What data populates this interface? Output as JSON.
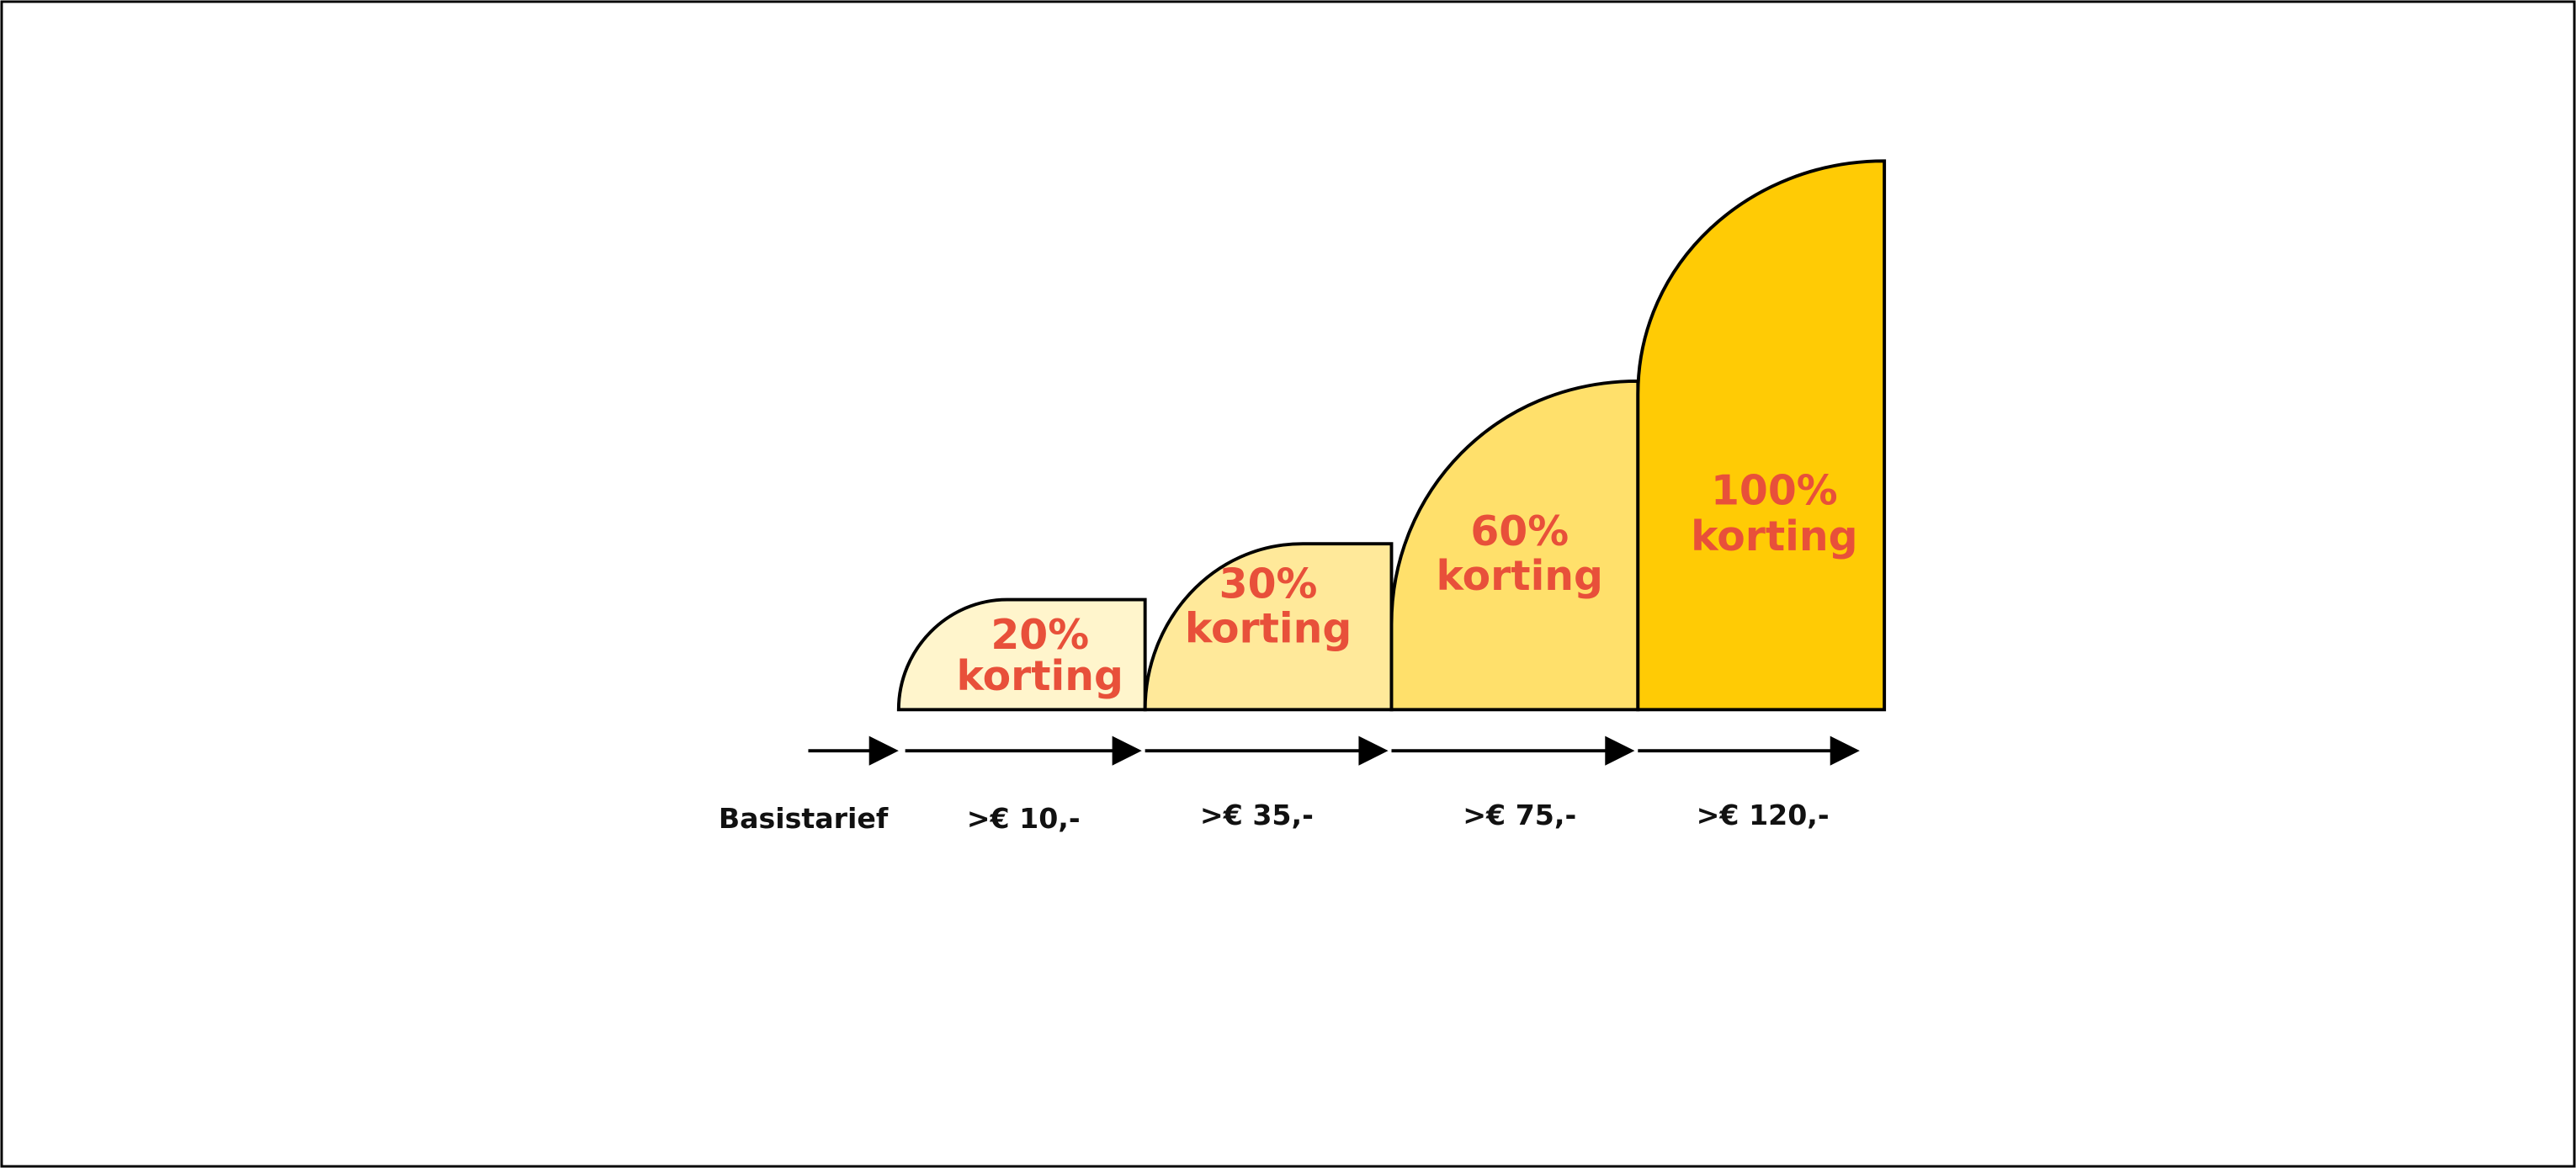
{
  "colors": {
    "text_accent": "#E8503A",
    "stroke": "#000000"
  },
  "base_label": "Basistarief",
  "tiers": [
    {
      "discount": "20%",
      "word": "korting",
      "threshold": ">€ 10,-",
      "fill": "#FFF5CC"
    },
    {
      "discount": "30%",
      "word": "korting",
      "threshold": ">€ 35,-",
      "fill": "#FFE99A"
    },
    {
      "discount": "60%",
      "word": "korting",
      "threshold": ">€ 75,-",
      "fill": "#FFE06B"
    },
    {
      "discount": "100%",
      "word": "korting",
      "threshold": ">€ 120,-",
      "fill": "#FFCB05"
    }
  ]
}
